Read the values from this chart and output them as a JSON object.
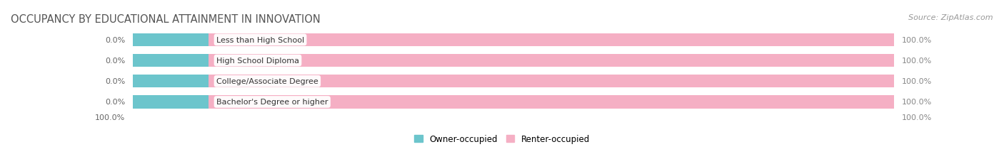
{
  "title": "OCCUPANCY BY EDUCATIONAL ATTAINMENT IN INNOVATION",
  "source": "Source: ZipAtlas.com",
  "categories": [
    "Less than High School",
    "High School Diploma",
    "College/Associate Degree",
    "Bachelor's Degree or higher"
  ],
  "owner_values": [
    0.0,
    0.0,
    0.0,
    0.0
  ],
  "renter_values": [
    100.0,
    100.0,
    100.0,
    100.0
  ],
  "owner_color": "#6cc5cc",
  "renter_color": "#f5afc4",
  "bar_bg_color": "#efefef",
  "owner_label": "Owner-occupied",
  "renter_label": "Renter-occupied",
  "title_fontsize": 10.5,
  "source_fontsize": 8,
  "label_fontsize": 8.5,
  "bar_label_fontsize": 8,
  "cat_label_fontsize": 8,
  "figsize": [
    14.06,
    2.32
  ],
  "dpi": 100,
  "owner_segment_pct": 10.0
}
